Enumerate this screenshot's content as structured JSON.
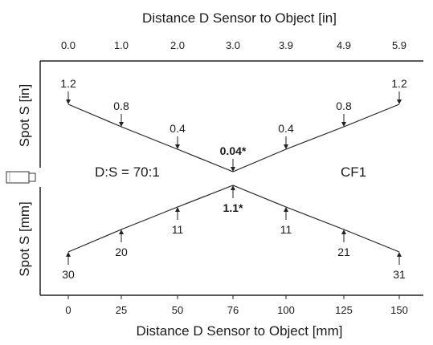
{
  "top_axis_label": "Distance D Sensor to Object [in]",
  "bottom_axis_label": "Distance D Sensor to Object [mm]",
  "upper_side_label": "Spot S [in]",
  "lower_side_label": "Spot S [mm]",
  "ratio_label": "D:S = 70:1",
  "model_label": "CF1",
  "chart_data": {
    "type": "line",
    "top_ticks": [
      "0.0",
      "1.0",
      "2.0",
      "3.0",
      "3.9",
      "4.9",
      "5.9"
    ],
    "bottom_ticks": [
      "0",
      "25",
      "50",
      "76",
      "100",
      "125",
      "150"
    ],
    "distance_mm": [
      0,
      25,
      50,
      76,
      100,
      125,
      150
    ],
    "spot_in": [
      1.2,
      0.8,
      0.4,
      0.04,
      0.4,
      0.8,
      1.2
    ],
    "spot_mm": [
      30,
      20,
      11,
      1.1,
      11,
      21,
      31
    ],
    "spot_in_labels": [
      "1.2",
      "0.8",
      "0.4",
      "0.04*",
      "0.4",
      "0.8",
      "1.2"
    ],
    "spot_mm_labels": [
      "30",
      "20",
      "11",
      "1.1*",
      "11",
      "21",
      "31"
    ],
    "focus_index": 3
  }
}
